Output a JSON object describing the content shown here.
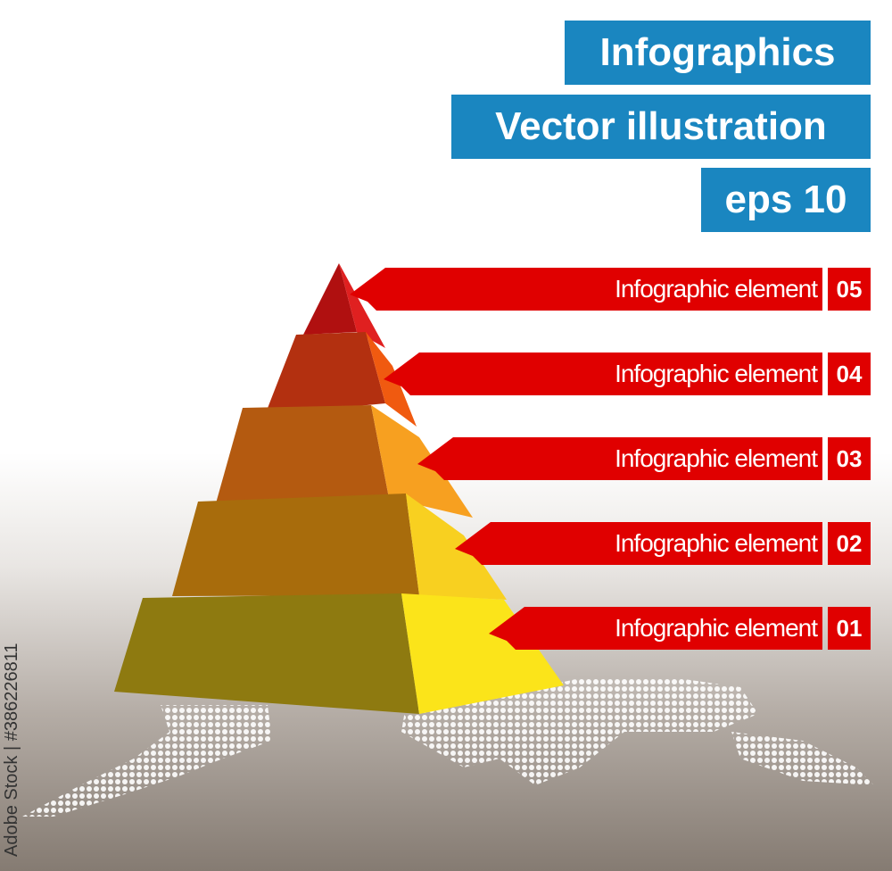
{
  "titles": [
    "Infographics",
    "Vector illustration",
    "eps 10"
  ],
  "colors": {
    "title_bg": "#1a86c0",
    "ribbon": "#e00000",
    "background_bottom": "#857b72"
  },
  "pyramid_levels": [
    {
      "number": "05",
      "label": "Infographic element",
      "front": "#b01010",
      "side": "#e02020"
    },
    {
      "number": "04",
      "label": "Infographic element",
      "front": "#b33010",
      "side": "#f05a10"
    },
    {
      "number": "03",
      "label": "Infographic element",
      "front": "#b45a10",
      "side": "#f7a020"
    },
    {
      "number": "02",
      "label": "Infographic element",
      "front": "#a86c0c",
      "side": "#f8d020"
    },
    {
      "number": "01",
      "label": "Infographic element",
      "front": "#8e7a10",
      "side": "#fbe41a"
    }
  ],
  "watermark": "Adobe Stock | #386226811"
}
